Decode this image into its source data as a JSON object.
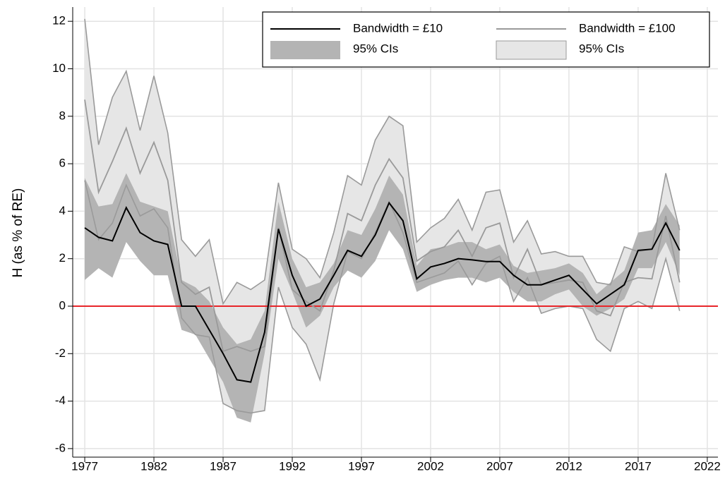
{
  "chart_data": {
    "type": "line",
    "y_label": "H (as % of RE)",
    "x": [
      1977,
      1978,
      1979,
      1980,
      1981,
      1982,
      1983,
      1984,
      1985,
      1986,
      1987,
      1988,
      1989,
      1990,
      1991,
      1992,
      1993,
      1994,
      1995,
      1996,
      1997,
      1998,
      1999,
      2000,
      2001,
      2002,
      2003,
      2004,
      2005,
      2006,
      2007,
      2008,
      2009,
      2010,
      2011,
      2012,
      2013,
      2014,
      2015,
      2016,
      2017,
      2018,
      2019,
      2020
    ],
    "xlim": [
      1976.13,
      2022.77
    ],
    "xticks": [
      1977,
      1982,
      1987,
      1992,
      1997,
      2002,
      2007,
      2012,
      2017,
      2022
    ],
    "ylim": [
      -6.36,
      12.6
    ],
    "yticks": [
      -6,
      -4,
      -2,
      0,
      2,
      4,
      6,
      8,
      10,
      12
    ],
    "grid": true,
    "reference_line": {
      "value": 0,
      "color": "#e8262a"
    },
    "series": [
      {
        "name": "Bandwidth = £10",
        "color": "#000000",
        "values": [
          3.3,
          2.9,
          2.75,
          4.15,
          3.1,
          2.75,
          2.6,
          0,
          0,
          -1.0,
          -2.0,
          -3.1,
          -3.2,
          -1.1,
          3.25,
          1.3,
          0,
          0.3,
          1.3,
          2.35,
          2.1,
          3.0,
          4.35,
          3.6,
          1.15,
          1.65,
          1.8,
          2.0,
          1.95,
          1.88,
          1.88,
          1.3,
          0.9,
          0.9,
          1.1,
          1.3,
          0.7,
          0.1,
          0.5,
          0.9,
          2.35,
          2.4,
          3.5,
          2.35
        ],
        "ci_name": "95% CIs",
        "ci_color": "#b4b4b4",
        "upper": [
          5.4,
          4.2,
          4.3,
          5.6,
          4.4,
          4.2,
          4.0,
          1.1,
          0.8,
          0.2,
          -0.9,
          -1.6,
          -1.4,
          -0.2,
          4.4,
          2.0,
          0.8,
          1.0,
          1.8,
          3.2,
          3.0,
          4.1,
          5.5,
          4.7,
          1.7,
          2.4,
          2.5,
          2.7,
          2.7,
          2.4,
          2.6,
          1.7,
          1.4,
          1.5,
          1.6,
          1.8,
          1.4,
          0.5,
          1.0,
          1.5,
          3.1,
          3.2,
          4.3,
          3.4
        ],
        "lower": [
          1.1,
          1.6,
          1.2,
          2.7,
          1.9,
          1.3,
          1.3,
          -1.0,
          -1.2,
          -2.2,
          -3.2,
          -4.7,
          -4.9,
          -2.0,
          2.0,
          0.6,
          -0.9,
          -0.4,
          0.8,
          1.5,
          1.2,
          1.9,
          3.2,
          2.4,
          0.6,
          0.9,
          1.1,
          1.2,
          1.2,
          1.0,
          1.2,
          0.6,
          0.2,
          0.2,
          0.5,
          0.7,
          0.0,
          -0.4,
          -0.1,
          0.3,
          1.6,
          1.6,
          2.7,
          1.3
        ]
      },
      {
        "name": "Bandwidth = £100",
        "color": "#9a9a9a",
        "values": [
          8.7,
          4.8,
          6.1,
          7.5,
          5.6,
          6.9,
          5.3,
          1.0,
          0.5,
          0.8,
          -1.9,
          -1.7,
          -1.9,
          -1.7,
          3.3,
          0.7,
          0.2,
          -0.2,
          1.5,
          3.9,
          3.6,
          5.1,
          6.2,
          5.4,
          1.9,
          2.3,
          2.5,
          3.2,
          2.1,
          3.3,
          3.5,
          1.2,
          2.4,
          0.9,
          1.0,
          1.1,
          1.0,
          -0.2,
          -0.4,
          1.0,
          1.2,
          1.15,
          3.8,
          1.0
        ],
        "ci_name": "95% CIs",
        "ci_color": "#e6e6e6",
        "upper": [
          12.1,
          6.8,
          8.8,
          9.9,
          7.4,
          9.7,
          7.3,
          2.8,
          2.1,
          2.8,
          0.1,
          1.0,
          0.7,
          1.1,
          5.2,
          2.4,
          2.0,
          1.2,
          3.1,
          5.5,
          5.1,
          7.0,
          8.0,
          7.6,
          2.7,
          3.3,
          3.7,
          4.5,
          3.2,
          4.8,
          4.9,
          2.7,
          3.6,
          2.2,
          2.3,
          2.1,
          2.1,
          1.0,
          0.9,
          2.5,
          2.3,
          2.4,
          5.6,
          3.2
        ],
        "lower": [
          5.3,
          2.8,
          3.5,
          5.1,
          3.8,
          4.1,
          3.3,
          -0.5,
          -1.2,
          -1.3,
          -4.1,
          -4.4,
          -4.5,
          -4.4,
          0.8,
          -0.9,
          -1.6,
          -3.1,
          0.1,
          2.3,
          2.0,
          3.1,
          4.4,
          3.1,
          1.0,
          1.2,
          1.4,
          1.9,
          0.9,
          1.8,
          2.1,
          0.2,
          1.2,
          -0.3,
          -0.1,
          0.0,
          -0.1,
          -1.4,
          -1.9,
          -0.1,
          0.2,
          -0.1,
          2.0,
          -0.2
        ]
      }
    ]
  }
}
